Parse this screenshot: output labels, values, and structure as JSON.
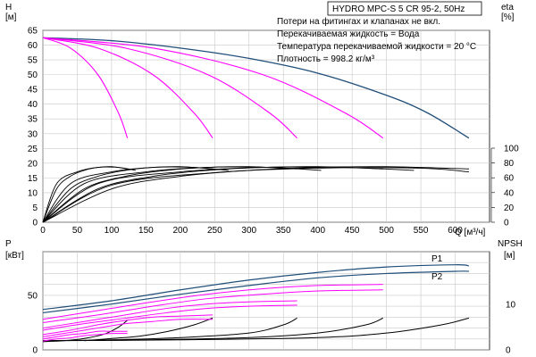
{
  "colors": {
    "pump_curve": "#1f4e79",
    "partial_speed": "#ff00ff",
    "efficiency": "#000000",
    "npsh": "#000000",
    "grid": "#c8c8c8"
  },
  "chart_data": {
    "type": "line",
    "title": "HYDRO MPC-S 5 CR 95-2, 50Hz",
    "notes": [
      "Потери на фитингах и клапанах не вкл.",
      "Перекачиваемая жидкость = Вода",
      "Температура перекачиваемой жидкости = 20 °C",
      "Плотность = 998.2 кг/м³"
    ],
    "upper": {
      "ylabel_unit": "H",
      "ylabel_sub": "[м]",
      "ylabel2": "eta",
      "ylabel2_sub": "[%]",
      "xlabel": "Q [м³/ч]",
      "xlim": [
        0,
        650
      ],
      "ylim": [
        0,
        65
      ],
      "x_ticks": [
        "0",
        "50",
        "100",
        "150",
        "200",
        "250",
        "300",
        "350",
        "400",
        "450",
        "500",
        "550",
        "600"
      ],
      "y_ticks": [
        "0",
        "5",
        "10",
        "15",
        "20",
        "25",
        "30",
        "35",
        "40",
        "45",
        "50",
        "55",
        "60",
        "65"
      ],
      "eta_ticks": [
        "0",
        "20",
        "40",
        "60",
        "80",
        "100"
      ],
      "eta_range": [
        0,
        100
      ],
      "eta_axis_start_h": 0,
      "eta_axis_end_h": 100,
      "head_curves": [
        {
          "kind": "full",
          "x": [
            0,
            100,
            200,
            300,
            400,
            500,
            560,
            620
          ],
          "y": [
            62.5,
            61.5,
            59,
            55.5,
            50.5,
            43,
            37,
            28.5
          ]
        },
        {
          "kind": "partial",
          "x": [
            0,
            40,
            80,
            110,
            123
          ],
          "y": [
            62.5,
            59,
            50,
            37,
            28.5
          ]
        },
        {
          "kind": "partial",
          "x": [
            0,
            80,
            160,
            220,
            247
          ],
          "y": [
            62.5,
            59,
            50,
            37,
            28.5
          ]
        },
        {
          "kind": "partial",
          "x": [
            0,
            120,
            240,
            330,
            370
          ],
          "y": [
            62.5,
            59,
            50,
            37,
            28.5
          ]
        },
        {
          "kind": "partial",
          "x": [
            0,
            160,
            320,
            440,
            495
          ],
          "y": [
            62.5,
            59,
            50,
            37,
            28.5
          ]
        }
      ],
      "eta_curves": [
        {
          "x": [
            0,
            20,
            40,
            60,
            80,
            100,
            123
          ],
          "y": [
            0,
            45,
            62,
            70,
            74,
            75,
            72
          ]
        },
        {
          "x": [
            0,
            20,
            50,
            80,
            110,
            135
          ],
          "y": [
            0,
            52,
            68,
            74,
            74,
            70
          ]
        },
        {
          "x": [
            0,
            40,
            80,
            120,
            160,
            200,
            247
          ],
          "y": [
            0,
            45,
            62,
            70,
            74,
            75,
            72
          ]
        },
        {
          "x": [
            0,
            40,
            100,
            160,
            220,
            270
          ],
          "y": [
            0,
            52,
            68,
            74,
            74,
            70
          ]
        },
        {
          "x": [
            0,
            60,
            120,
            180,
            240,
            300,
            370
          ],
          "y": [
            0,
            45,
            62,
            70,
            74,
            75,
            72
          ]
        },
        {
          "x": [
            0,
            60,
            150,
            240,
            330,
            405
          ],
          "y": [
            0,
            52,
            68,
            74,
            74,
            70
          ]
        },
        {
          "x": [
            0,
            80,
            160,
            240,
            320,
            400,
            495
          ],
          "y": [
            0,
            45,
            62,
            70,
            74,
            75,
            72
          ]
        },
        {
          "x": [
            0,
            80,
            200,
            320,
            440,
            540
          ],
          "y": [
            0,
            52,
            68,
            74,
            74,
            70
          ]
        },
        {
          "x": [
            0,
            100,
            200,
            300,
            400,
            500,
            620
          ],
          "y": [
            0,
            45,
            62,
            70,
            74,
            75,
            72
          ]
        },
        {
          "x": [
            0,
            100,
            250,
            400,
            550,
            620
          ],
          "y": [
            0,
            50,
            67,
            73,
            73,
            68
          ]
        }
      ]
    },
    "lower": {
      "ylabel_unit": "P",
      "ylabel_sub": "[кВт]",
      "ylabel2": "NPSH",
      "ylabel2_sub": "[м]",
      "ylim": [
        0,
        90
      ],
      "y_ticks": [
        "0",
        "50"
      ],
      "npsh_ticks": [
        "0",
        "10"
      ],
      "npsh_range": [
        0,
        21.6
      ],
      "series_labels": [
        "P1",
        "P2"
      ],
      "p_curves": [
        {
          "kind": "P1",
          "x": [
            0,
            100,
            200,
            300,
            400,
            500,
            600,
            620
          ],
          "y": [
            37,
            45,
            55,
            64,
            71,
            76,
            78,
            77
          ]
        },
        {
          "kind": "P2",
          "x": [
            0,
            100,
            200,
            300,
            400,
            500,
            600,
            620
          ],
          "y": [
            34,
            42,
            51,
            59,
            66,
            70,
            72,
            72
          ]
        },
        {
          "kind": "partial",
          "x": [
            0,
            80,
            160,
            240,
            320,
            400,
            495
          ],
          "y": [
            28,
            36,
            44,
            51,
            56,
            59,
            60
          ]
        },
        {
          "kind": "partial",
          "x": [
            0,
            80,
            160,
            240,
            320,
            400,
            495
          ],
          "y": [
            25,
            32,
            40,
            47,
            51,
            54,
            55
          ]
        },
        {
          "kind": "partial",
          "x": [
            0,
            60,
            120,
            180,
            240,
            300,
            370
          ],
          "y": [
            20,
            26,
            32,
            38,
            42,
            44,
            45
          ]
        },
        {
          "kind": "partial",
          "x": [
            0,
            60,
            120,
            180,
            240,
            300,
            370
          ],
          "y": [
            18,
            24,
            29,
            34,
            38,
            40,
            41
          ]
        },
        {
          "kind": "partial",
          "x": [
            0,
            40,
            80,
            120,
            160,
            200,
            247
          ],
          "y": [
            14,
            18,
            23,
            27,
            30,
            31,
            32
          ]
        },
        {
          "kind": "partial",
          "x": [
            0,
            40,
            80,
            120,
            160,
            200,
            247
          ],
          "y": [
            12,
            16,
            20,
            24,
            26,
            28,
            28
          ]
        },
        {
          "kind": "partial",
          "x": [
            0,
            20,
            40,
            60,
            80,
            100,
            123
          ],
          "y": [
            10,
            12,
            14,
            15,
            17,
            17,
            17
          ]
        },
        {
          "kind": "partial",
          "x": [
            0,
            20,
            40,
            60,
            80,
            100,
            123
          ],
          "y": [
            8,
            10,
            11,
            13,
            14,
            15,
            15
          ]
        }
      ],
      "npsh_curves": [
        {
          "x": [
            0,
            30,
            60,
            90,
            110,
            123
          ],
          "y": [
            1.8,
            2.0,
            2.5,
            3.5,
            5.0,
            6.5
          ]
        },
        {
          "x": [
            60,
            100,
            140,
            180,
            220,
            247
          ],
          "y": [
            2.0,
            2.5,
            3.0,
            4.0,
            5.5,
            7.0
          ]
        },
        {
          "x": [
            0,
            100,
            200,
            300,
            350,
            370
          ],
          "y": [
            2.0,
            2.2,
            2.7,
            3.7,
            5.5,
            7.0
          ]
        },
        {
          "x": [
            0,
            150,
            300,
            400,
            470,
            495
          ],
          "y": [
            2.0,
            2.2,
            2.7,
            3.7,
            5.5,
            7.0
          ]
        },
        {
          "x": [
            0,
            200,
            400,
            500,
            580,
            620
          ],
          "y": [
            2.0,
            2.2,
            2.7,
            3.7,
            5.5,
            7.0
          ]
        }
      ]
    }
  }
}
